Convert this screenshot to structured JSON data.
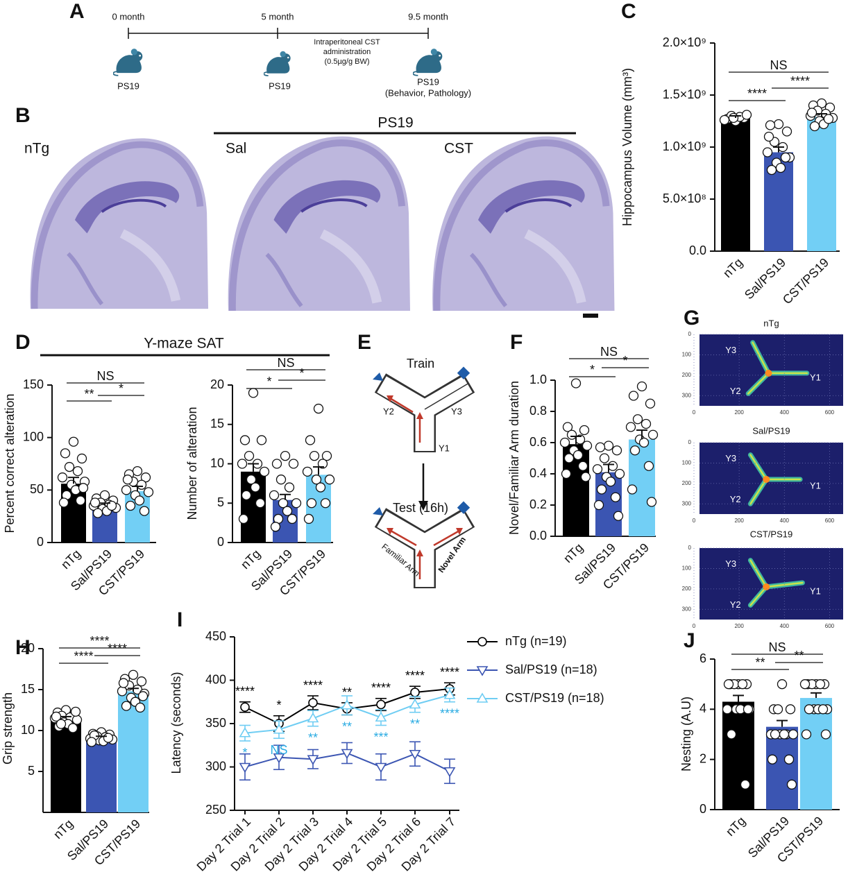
{
  "panel_labels": [
    "A",
    "B",
    "C",
    "D",
    "E",
    "F",
    "G",
    "H",
    "I",
    "J"
  ],
  "timeline": {
    "times": [
      "0 month",
      "5 month",
      "9.5 month"
    ],
    "subjects": [
      "PS19",
      "PS19",
      "PS19"
    ],
    "outcome": "(Behavior, Pathology)",
    "treatment": [
      "Intraperitoneal CST",
      "administration",
      "(0.5µg/g BW)"
    ]
  },
  "brain_sections": {
    "group": "PS19",
    "sections": [
      "nTg",
      "Sal",
      "CST"
    ]
  },
  "ymaze_title": "Y-maze SAT",
  "ymaze_diagram": {
    "train": "Train",
    "test": "Test (16h)",
    "arms": [
      "Y1",
      "Y2",
      "Y3"
    ],
    "familiar": "Familiar",
    "arm": "Arm",
    "novel": "Novel Arm"
  },
  "heatmaps": {
    "titles": [
      "nTg",
      "Sal/PS19",
      "CST/PS19"
    ],
    "arm_labels": [
      "Y1",
      "Y2",
      "Y3"
    ],
    "xlim": [
      0,
      660
    ],
    "ylim": [
      0,
      350
    ],
    "xticks": [
      0,
      200,
      400,
      600
    ],
    "yticks": [
      0,
      100,
      200,
      300
    ]
  },
  "chart_data": [
    {
      "type": "bar",
      "ylabel": "Hippocampus Volume (mm³)",
      "categories": [
        "nTg",
        "Sal/PS19",
        "CST/PS19"
      ],
      "colors": [
        "#000000",
        "#3b55b2",
        "#72cff5"
      ],
      "values": [
        1280000000,
        950000000,
        1290000000
      ],
      "errors": [
        20000000,
        50000000,
        30000000
      ],
      "points": [
        [
          1250000000,
          1270000000,
          1280000000,
          1300000000,
          1290000000,
          1260000000,
          1310000000,
          1280000000
        ],
        [
          1220000000,
          1210000000,
          1150000000,
          1050000000,
          1000000000,
          950000000,
          900000000,
          850000000,
          800000000,
          780000000,
          900000000,
          1100000000
        ],
        [
          1420000000,
          1400000000,
          1380000000,
          1350000000,
          1320000000,
          1300000000,
          1280000000,
          1250000000,
          1220000000,
          1200000000,
          1270000000,
          1330000000
        ]
      ],
      "ylim": [
        0,
        2000000000
      ],
      "yticks": [
        {
          "value": 0,
          "label": "0.0"
        },
        {
          "value": 500000000,
          "label": "5.0×10⁸"
        },
        {
          "value": 1000000000,
          "label": "1.0×10⁹"
        },
        {
          "value": 1500000000,
          "label": "1.5×10⁹"
        },
        {
          "value": 2000000000,
          "label": "2.0×10⁹"
        }
      ],
      "brackets": [
        {
          "between": [
            "nTg",
            "CST/PS19"
          ],
          "label": "NS"
        },
        {
          "between": [
            "nTg",
            "Sal/PS19"
          ],
          "label": "****"
        },
        {
          "between": [
            "Sal/PS19",
            "CST/PS19"
          ],
          "label": "****"
        }
      ]
    },
    {
      "type": "bar",
      "ylabel": "Percent correct alteration",
      "categories": [
        "nTg",
        "Sal/PS19",
        "CST/PS19"
      ],
      "colors": [
        "#000000",
        "#3b55b2",
        "#72cff5"
      ],
      "values": [
        56,
        35,
        49
      ],
      "errors": [
        6,
        2.5,
        4.5
      ],
      "points": [
        [
          96,
          85,
          80,
          72,
          68,
          62,
          58,
          55,
          50,
          45,
          40,
          38,
          52
        ],
        [
          45,
          42,
          40,
          38,
          36,
          35,
          33,
          32,
          30,
          28,
          35,
          38
        ],
        [
          68,
          65,
          62,
          58,
          55,
          50,
          48,
          45,
          40,
          35,
          30,
          60
        ]
      ],
      "ylim": [
        0,
        150
      ],
      "yticks": [
        0,
        50,
        100,
        150
      ],
      "brackets": [
        {
          "between": [
            "nTg",
            "CST/PS19"
          ],
          "label": "NS"
        },
        {
          "between": [
            "nTg",
            "Sal/PS19"
          ],
          "label": "**"
        },
        {
          "between": [
            "Sal/PS19",
            "CST/PS19"
          ],
          "label": "*"
        }
      ]
    },
    {
      "type": "bar",
      "ylabel": "Number of alteration",
      "categories": [
        "nTg",
        "Sal/PS19",
        "CST/PS19"
      ],
      "colors": [
        "#000000",
        "#3b55b2",
        "#72cff5"
      ],
      "values": [
        9,
        5.4,
        8.6
      ],
      "errors": [
        1,
        0.7,
        1
      ],
      "points": [
        [
          19,
          13,
          13,
          11,
          10,
          10,
          9,
          8,
          7,
          6,
          5,
          3
        ],
        [
          11,
          10,
          10,
          8,
          7,
          6,
          5,
          5,
          4,
          3,
          3,
          2
        ],
        [
          17,
          13,
          11,
          11,
          10,
          9,
          8,
          8,
          7,
          5,
          5,
          3
        ]
      ],
      "ylim": [
        0,
        20
      ],
      "yticks": [
        0,
        5,
        10,
        15,
        20
      ],
      "brackets": [
        {
          "between": [
            "nTg",
            "CST/PS19"
          ],
          "label": "NS"
        },
        {
          "between": [
            "nTg",
            "Sal/PS19"
          ],
          "label": "*"
        },
        {
          "between": [
            "Sal/PS19",
            "CST/PS19"
          ],
          "label": "*"
        }
      ]
    },
    {
      "type": "bar",
      "ylabel": "Novel/Familiar Arm duration",
      "categories": [
        "nTg",
        "Sal/PS19",
        "CST/PS19"
      ],
      "colors": [
        "#000000",
        "#3b55b2",
        "#72cff5"
      ],
      "values": [
        0.59,
        0.41,
        0.62
      ],
      "errors": [
        0.05,
        0.05,
        0.06
      ],
      "points": [
        [
          0.98,
          0.7,
          0.68,
          0.65,
          0.62,
          0.6,
          0.58,
          0.55,
          0.52,
          0.5,
          0.45,
          0.4,
          0.38
        ],
        [
          0.58,
          0.57,
          0.55,
          0.5,
          0.45,
          0.43,
          0.4,
          0.38,
          0.35,
          0.3,
          0.25,
          0.2,
          0.13
        ],
        [
          0.96,
          0.9,
          0.85,
          0.75,
          0.72,
          0.7,
          0.65,
          0.62,
          0.6,
          0.55,
          0.45,
          0.3,
          0.22
        ]
      ],
      "ylim": [
        0,
        1
      ],
      "yticks": [
        {
          "value": 0,
          "label": "0.0"
        },
        0.2,
        0.4,
        0.6,
        0.8,
        {
          "value": 1,
          "label": "1.0"
        }
      ],
      "brackets": [
        {
          "between": [
            "nTg",
            "CST/PS19"
          ],
          "label": "NS"
        },
        {
          "between": [
            "nTg",
            "Sal/PS19"
          ],
          "label": "*"
        },
        {
          "between": [
            "Sal/PS19",
            "CST/PS19"
          ],
          "label": "*"
        }
      ]
    },
    {
      "type": "bar",
      "ylabel": "Grip strength",
      "categories": [
        "nTg",
        "Sal/PS19",
        "CST/PS19"
      ],
      "colors": [
        "#000000",
        "#3b55b2",
        "#72cff5"
      ],
      "values": [
        11.5,
        9.2,
        14.8
      ],
      "errors": [
        0.2,
        0.1,
        0.35
      ],
      "points": [
        [
          12.5,
          12.2,
          12,
          11.8,
          11.6,
          11.5,
          11.3,
          11,
          10.8,
          10.5,
          10.3,
          11.7,
          12.3,
          10.8
        ],
        [
          9.8,
          9.6,
          9.5,
          9.3,
          9.2,
          9,
          8.9,
          8.8,
          8.7,
          9.4,
          9.1,
          8.6
        ],
        [
          16.8,
          16.3,
          16,
          15.5,
          15,
          14.8,
          14.5,
          14,
          13.5,
          13,
          12.8,
          15.8,
          14.2
        ]
      ],
      "ylim": [
        0,
        20
      ],
      "yticks": [
        5,
        10,
        15,
        20
      ],
      "brackets": [
        {
          "between": [
            "nTg",
            "CST/PS19"
          ],
          "label": "****"
        },
        {
          "between": [
            "nTg",
            "Sal/PS19"
          ],
          "label": "****"
        },
        {
          "between": [
            "Sal/PS19",
            "CST/PS19"
          ],
          "label": "****"
        }
      ]
    },
    {
      "type": "bar",
      "ylabel": "Nesting (A.U)",
      "categories": [
        "nTg",
        "Sal/PS19",
        "CST/PS19"
      ],
      "colors": [
        "#000000",
        "#3b55b2",
        "#72cff5"
      ],
      "values": [
        4.3,
        3.3,
        4.45
      ],
      "errors": [
        0.25,
        0.25,
        0.2
      ],
      "points": [
        [
          5,
          5,
          5,
          5,
          5,
          4,
          4,
          4,
          4,
          3,
          1,
          5,
          4
        ],
        [
          5,
          4,
          4,
          4,
          3,
          3,
          3,
          3,
          3,
          3,
          2,
          2,
          1
        ],
        [
          5,
          5,
          5,
          5,
          5,
          5,
          4,
          4,
          4,
          4,
          4,
          3,
          3
        ]
      ],
      "ylim": [
        0,
        6
      ],
      "yticks": [
        0,
        2,
        4,
        6
      ],
      "brackets": [
        {
          "between": [
            "nTg",
            "CST/PS19"
          ],
          "label": "NS"
        },
        {
          "between": [
            "nTg",
            "Sal/PS19"
          ],
          "label": "**"
        },
        {
          "between": [
            "Sal/PS19",
            "CST/PS19"
          ],
          "label": "**"
        }
      ]
    },
    {
      "type": "line",
      "ylabel": "Latency (seconds)",
      "categories": [
        "Day 2 Trial 1",
        "Day 2 Trial 2",
        "Day 2 Trial 3",
        "Day 2 Trial 4",
        "Day 2 Trial 5",
        "Day 2 Trial 6",
        "Day 2 Trial 7"
      ],
      "ylim": [
        250,
        450
      ],
      "yticks": [
        250,
        300,
        350,
        400,
        450
      ],
      "series": [
        {
          "name": "nTg (n=19)",
          "color": "#000000",
          "marker": "circle",
          "values": [
            369,
            350,
            374,
            367,
            372,
            386,
            390
          ],
          "errors": [
            6,
            9,
            8,
            7,
            7,
            7,
            7
          ],
          "significance": [
            "****",
            "*",
            "****",
            "**",
            "****",
            "****",
            "****"
          ],
          "significance_color": "#000000"
        },
        {
          "name": "Sal/PS19 (n=18)",
          "color": "#3b55b2",
          "marker": "triangle-down",
          "values": [
            300,
            311,
            309,
            316,
            300,
            315,
            295
          ],
          "errors": [
            15,
            14,
            11,
            12,
            15,
            14,
            14
          ]
        },
        {
          "name": "CST/PS19 (n=18)",
          "color": "#6fcdf3",
          "marker": "triangle-up",
          "values": [
            339,
            343,
            356,
            371,
            357,
            372,
            383
          ],
          "errors": [
            9,
            10,
            9,
            11,
            9,
            9,
            8
          ],
          "significance": [
            "*",
            "NS",
            "**",
            "**",
            "***",
            "**",
            "****"
          ],
          "significance_color": "#29abe2"
        }
      ]
    }
  ]
}
